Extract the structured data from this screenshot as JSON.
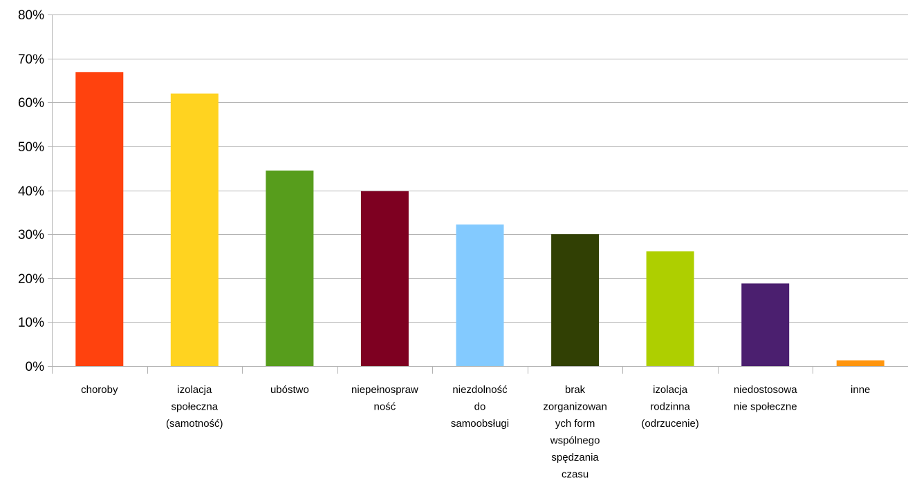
{
  "chart_data": {
    "type": "bar",
    "title": "",
    "xlabel": "",
    "ylabel": "",
    "ylim": [
      0,
      80
    ],
    "y_ticks": [
      0,
      10,
      20,
      30,
      40,
      50,
      60,
      70,
      80
    ],
    "y_tick_labels": [
      "0%",
      "10%",
      "20%",
      "30%",
      "40%",
      "50%",
      "60%",
      "70%",
      "80%"
    ],
    "grid": true,
    "legend": "none",
    "categories": [
      "choroby",
      "izolacja społeczna (samotność)",
      "ubóstwo",
      "niepełnosprawność",
      "niezdolność do samoobsługi",
      "brak zorganizowanych form wspólnego spędzania czasu",
      "izolacja rodzinna (odrzucenie)",
      "niedostosowanie społeczne",
      "inne"
    ],
    "category_label_lines": [
      [
        "choroby"
      ],
      [
        "izolacja",
        "społeczna",
        "(samotność)"
      ],
      [
        "ubóstwo"
      ],
      [
        "niepełnospraw",
        "ność"
      ],
      [
        "niezdolność",
        "do",
        "samoobsługi"
      ],
      [
        "brak",
        "zorganizowan",
        "ych form",
        "wspólnego",
        "spędzania",
        "czasu"
      ],
      [
        "izolacja",
        "rodzinna",
        "(odrzucenie)"
      ],
      [
        "niedostosowa",
        "nie społeczne"
      ],
      [
        "inne"
      ]
    ],
    "values": [
      66.9,
      62.0,
      44.5,
      39.8,
      32.2,
      30.0,
      26.1,
      18.8,
      1.3
    ],
    "colors": [
      "#ff420e",
      "#ffd320",
      "#579d1c",
      "#7e0021",
      "#83caff",
      "#314004",
      "#aecf00",
      "#4b1f6f",
      "#ff950e"
    ]
  }
}
